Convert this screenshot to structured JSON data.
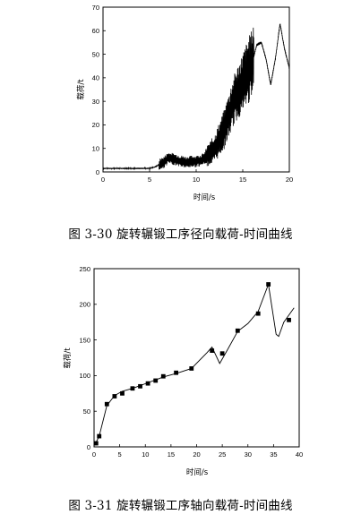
{
  "chart_data": [
    {
      "type": "line",
      "ylabel": "载荷/t",
      "xlabel": "时间/s",
      "xlim": [
        0,
        20
      ],
      "ylim": [
        0,
        70
      ],
      "xticks": [
        "0",
        "5",
        "10",
        "15",
        "20"
      ],
      "yticks": [
        "0",
        "10",
        "20",
        "30",
        "40",
        "50",
        "60",
        "70"
      ],
      "caption": "图 3-30  旋转辗锻工序径向载荷-时间曲线",
      "grid": false,
      "series": [
        {
          "values_note": "",
          "x": [
            0,
            1,
            2,
            3,
            4,
            5,
            5.5,
            6,
            6.5,
            7,
            7.5,
            8,
            8.5,
            9,
            9.5,
            10,
            10.5,
            11,
            11.5,
            12,
            12.5,
            13,
            13.5,
            14,
            14.5,
            15,
            15.5,
            16,
            16.5,
            17,
            17.5,
            18,
            18.5,
            19,
            19.5,
            20
          ],
          "y": [
            1.5,
            1.5,
            1.5,
            1.5,
            1.5,
            1.5,
            2,
            3,
            4,
            6,
            5.5,
            5,
            4.5,
            4,
            4.5,
            4.5,
            5,
            6,
            8,
            10,
            14,
            18,
            24,
            30,
            34,
            38,
            42,
            46,
            54,
            55,
            48,
            37,
            48,
            63,
            52,
            44
          ]
        }
      ]
    },
    {
      "type": "line",
      "ylabel": "载荷/t",
      "xlabel": "时间/s",
      "xlim": [
        0,
        40
      ],
      "ylim": [
        0,
        250
      ],
      "xticks": [
        "0",
        "5",
        "10",
        "15",
        "20",
        "25",
        "30",
        "35",
        "40"
      ],
      "yticks": [
        "0",
        "50",
        "100",
        "150",
        "200",
        "250"
      ],
      "caption": "图 3-31  旋转辗锻工序轴向载荷-时间曲线",
      "grid": false,
      "series": [
        {
          "x": [
            0.3,
            0.5,
            1,
            2.5,
            4,
            5.5,
            7.5,
            9,
            10.5,
            12,
            13.5,
            16,
            19,
            22,
            23,
            24.5,
            26,
            28,
            30,
            32,
            34,
            35.5,
            36,
            37,
            38,
            39
          ],
          "y": [
            2,
            8,
            15,
            58,
            72,
            78,
            82,
            86,
            90,
            94,
            98,
            103,
            110,
            132,
            140,
            117,
            136,
            162,
            173,
            190,
            228,
            158,
            155,
            175,
            185,
            195
          ]
        }
      ],
      "markers": {
        "x": [
          0.4,
          1,
          2.5,
          4,
          5.5,
          7.5,
          9,
          10.5,
          12,
          13.5,
          16,
          19,
          23,
          25,
          28,
          32,
          34,
          38
        ],
        "y": [
          5,
          15,
          60,
          71,
          75,
          82,
          85,
          89,
          93,
          99,
          104,
          110,
          135,
          131,
          163,
          187,
          228,
          178
        ]
      }
    }
  ],
  "captions": {
    "fig1": "图 3-30  旋转辗锻工序径向载荷-时间曲线",
    "fig2": "图 3-31  旋转辗锻工序轴向载荷-时间曲线"
  }
}
